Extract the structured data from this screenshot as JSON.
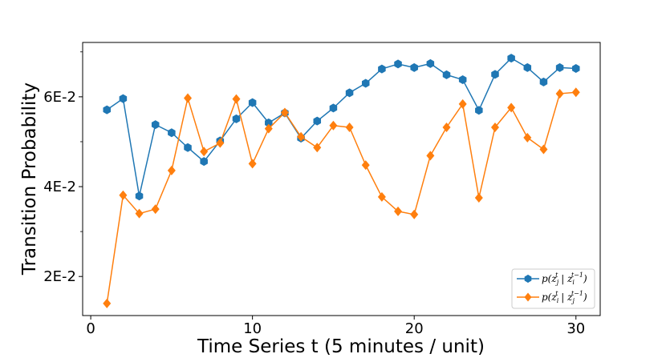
{
  "chart_data": {
    "type": "line",
    "xlabel": "Time Series t (5 minutes / unit)",
    "ylabel": "Transition Probability",
    "xlim": [
      -0.5,
      31.5
    ],
    "ylim": [
      0.0113,
      0.0721
    ],
    "xticks": [
      0,
      10,
      20,
      30
    ],
    "xtick_labels": [
      "0",
      "10",
      "20",
      "30"
    ],
    "yticks": [
      0.02,
      0.04,
      0.06
    ],
    "ytick_labels": [
      "2E-2",
      "4E-2",
      "6E-2"
    ],
    "y_minor_step": 0.01,
    "grid": false,
    "legend_placement": "lower-right",
    "x": [
      1,
      2,
      3,
      4,
      5,
      6,
      7,
      8,
      9,
      10,
      11,
      12,
      13,
      14,
      15,
      16,
      17,
      18,
      19,
      20,
      21,
      22,
      23,
      24,
      25,
      26,
      27,
      28,
      29,
      30
    ],
    "series": [
      {
        "name": "p(z_j^t | z_i^{t-1})",
        "legend_main": "p(z",
        "legend_mid": " | z",
        "legend_close": ")",
        "legend_sub1": "j",
        "legend_sup1": "t",
        "legend_sub2": "i",
        "legend_sup2": "t−1",
        "color": "#1f77b4",
        "marker": "hexagon",
        "values": [
          0.0571,
          0.0596,
          0.0379,
          0.0538,
          0.052,
          0.0487,
          0.0456,
          0.0502,
          0.0551,
          0.0587,
          0.0542,
          0.0564,
          0.0508,
          0.0546,
          0.0575,
          0.0609,
          0.063,
          0.0662,
          0.0673,
          0.0665,
          0.0674,
          0.0649,
          0.0638,
          0.057,
          0.065,
          0.0686,
          0.0665,
          0.0633,
          0.0665,
          0.0663
        ]
      },
      {
        "name": "p(z_i^t | z_j^{t-1})",
        "legend_main": "p(z",
        "legend_mid": " | z",
        "legend_close": ")",
        "legend_sub1": "i",
        "legend_sup1": "t",
        "legend_sub2": "j",
        "legend_sup2": "t−1",
        "color": "#ff7f0e",
        "marker": "diamond",
        "values": [
          0.014,
          0.0381,
          0.034,
          0.035,
          0.0436,
          0.0597,
          0.0478,
          0.0497,
          0.0595,
          0.0451,
          0.0529,
          0.0565,
          0.0511,
          0.0487,
          0.0536,
          0.0532,
          0.0448,
          0.0377,
          0.0345,
          0.0338,
          0.0469,
          0.0532,
          0.0584,
          0.0375,
          0.0532,
          0.0576,
          0.0509,
          0.0483,
          0.0607,
          0.061
        ]
      }
    ]
  }
}
